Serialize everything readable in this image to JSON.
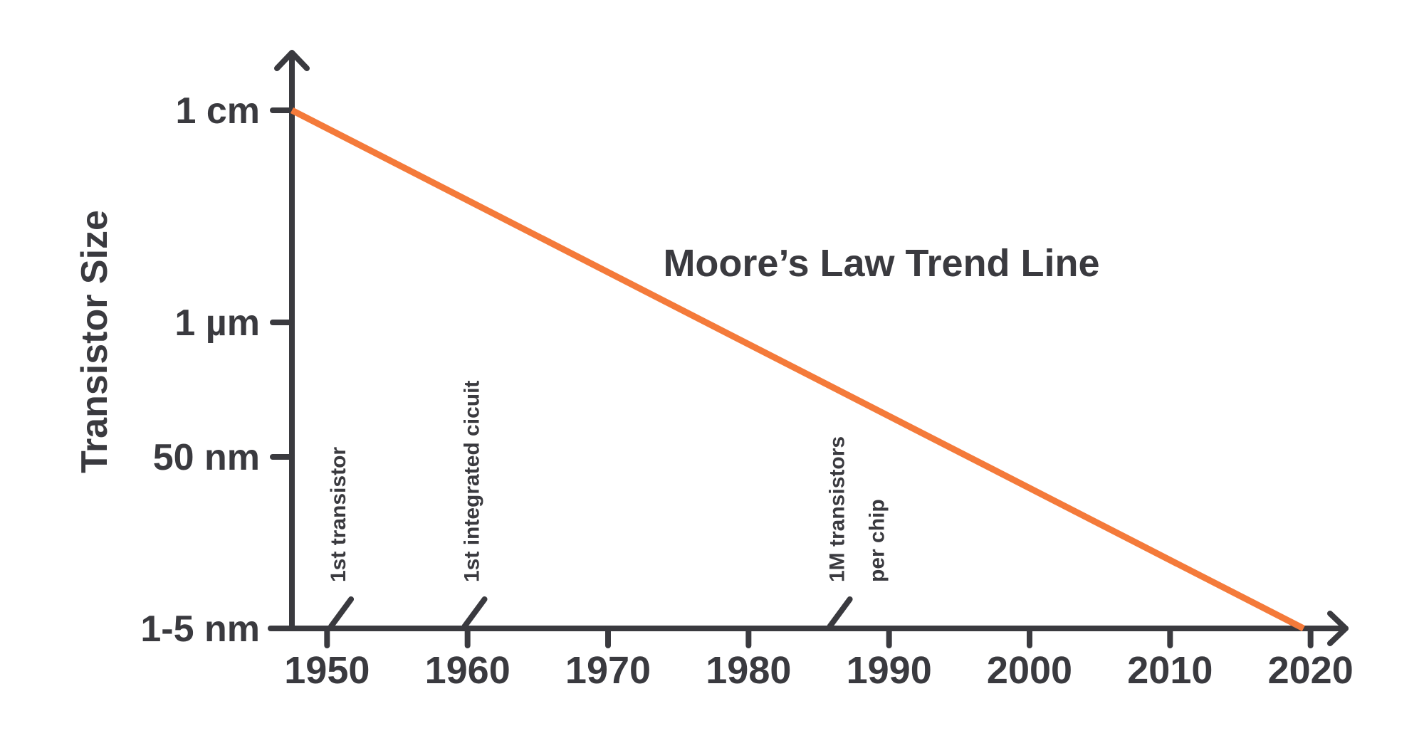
{
  "colors": {
    "axis": "#3a3a3f",
    "trend": "#f47a3a",
    "text": "#3a3a3f"
  },
  "chart_data": {
    "type": "line",
    "title": "",
    "xlabel": "",
    "ylabel": "Transistor Size",
    "x_ticks": [
      1950,
      1960,
      1970,
      1980,
      1990,
      2000,
      2010,
      2020
    ],
    "x_tick_labels": [
      "1950",
      "1960",
      "1970",
      "1980",
      "1990",
      "2000",
      "2010",
      "2020"
    ],
    "xlim": [
      1947.5,
      2022.5
    ],
    "y_ticks": [
      "1 cm",
      "1 µm",
      "50 nm",
      "1-5 nm"
    ],
    "grid": false,
    "series": [
      {
        "name": "Moore’s Law Trend Line",
        "points": [
          {
            "x": 1947.5,
            "y": "1 cm"
          },
          {
            "x": 2019.5,
            "y": "1-5 nm"
          }
        ]
      }
    ],
    "annotations": [
      {
        "x": 1951,
        "lines": [
          "1st transistor"
        ]
      },
      {
        "x": 1960.5,
        "lines": [
          "1st integrated cicuit"
        ]
      },
      {
        "x": 1986.5,
        "lines": [
          "1M transistors",
          "per chip"
        ]
      }
    ]
  }
}
